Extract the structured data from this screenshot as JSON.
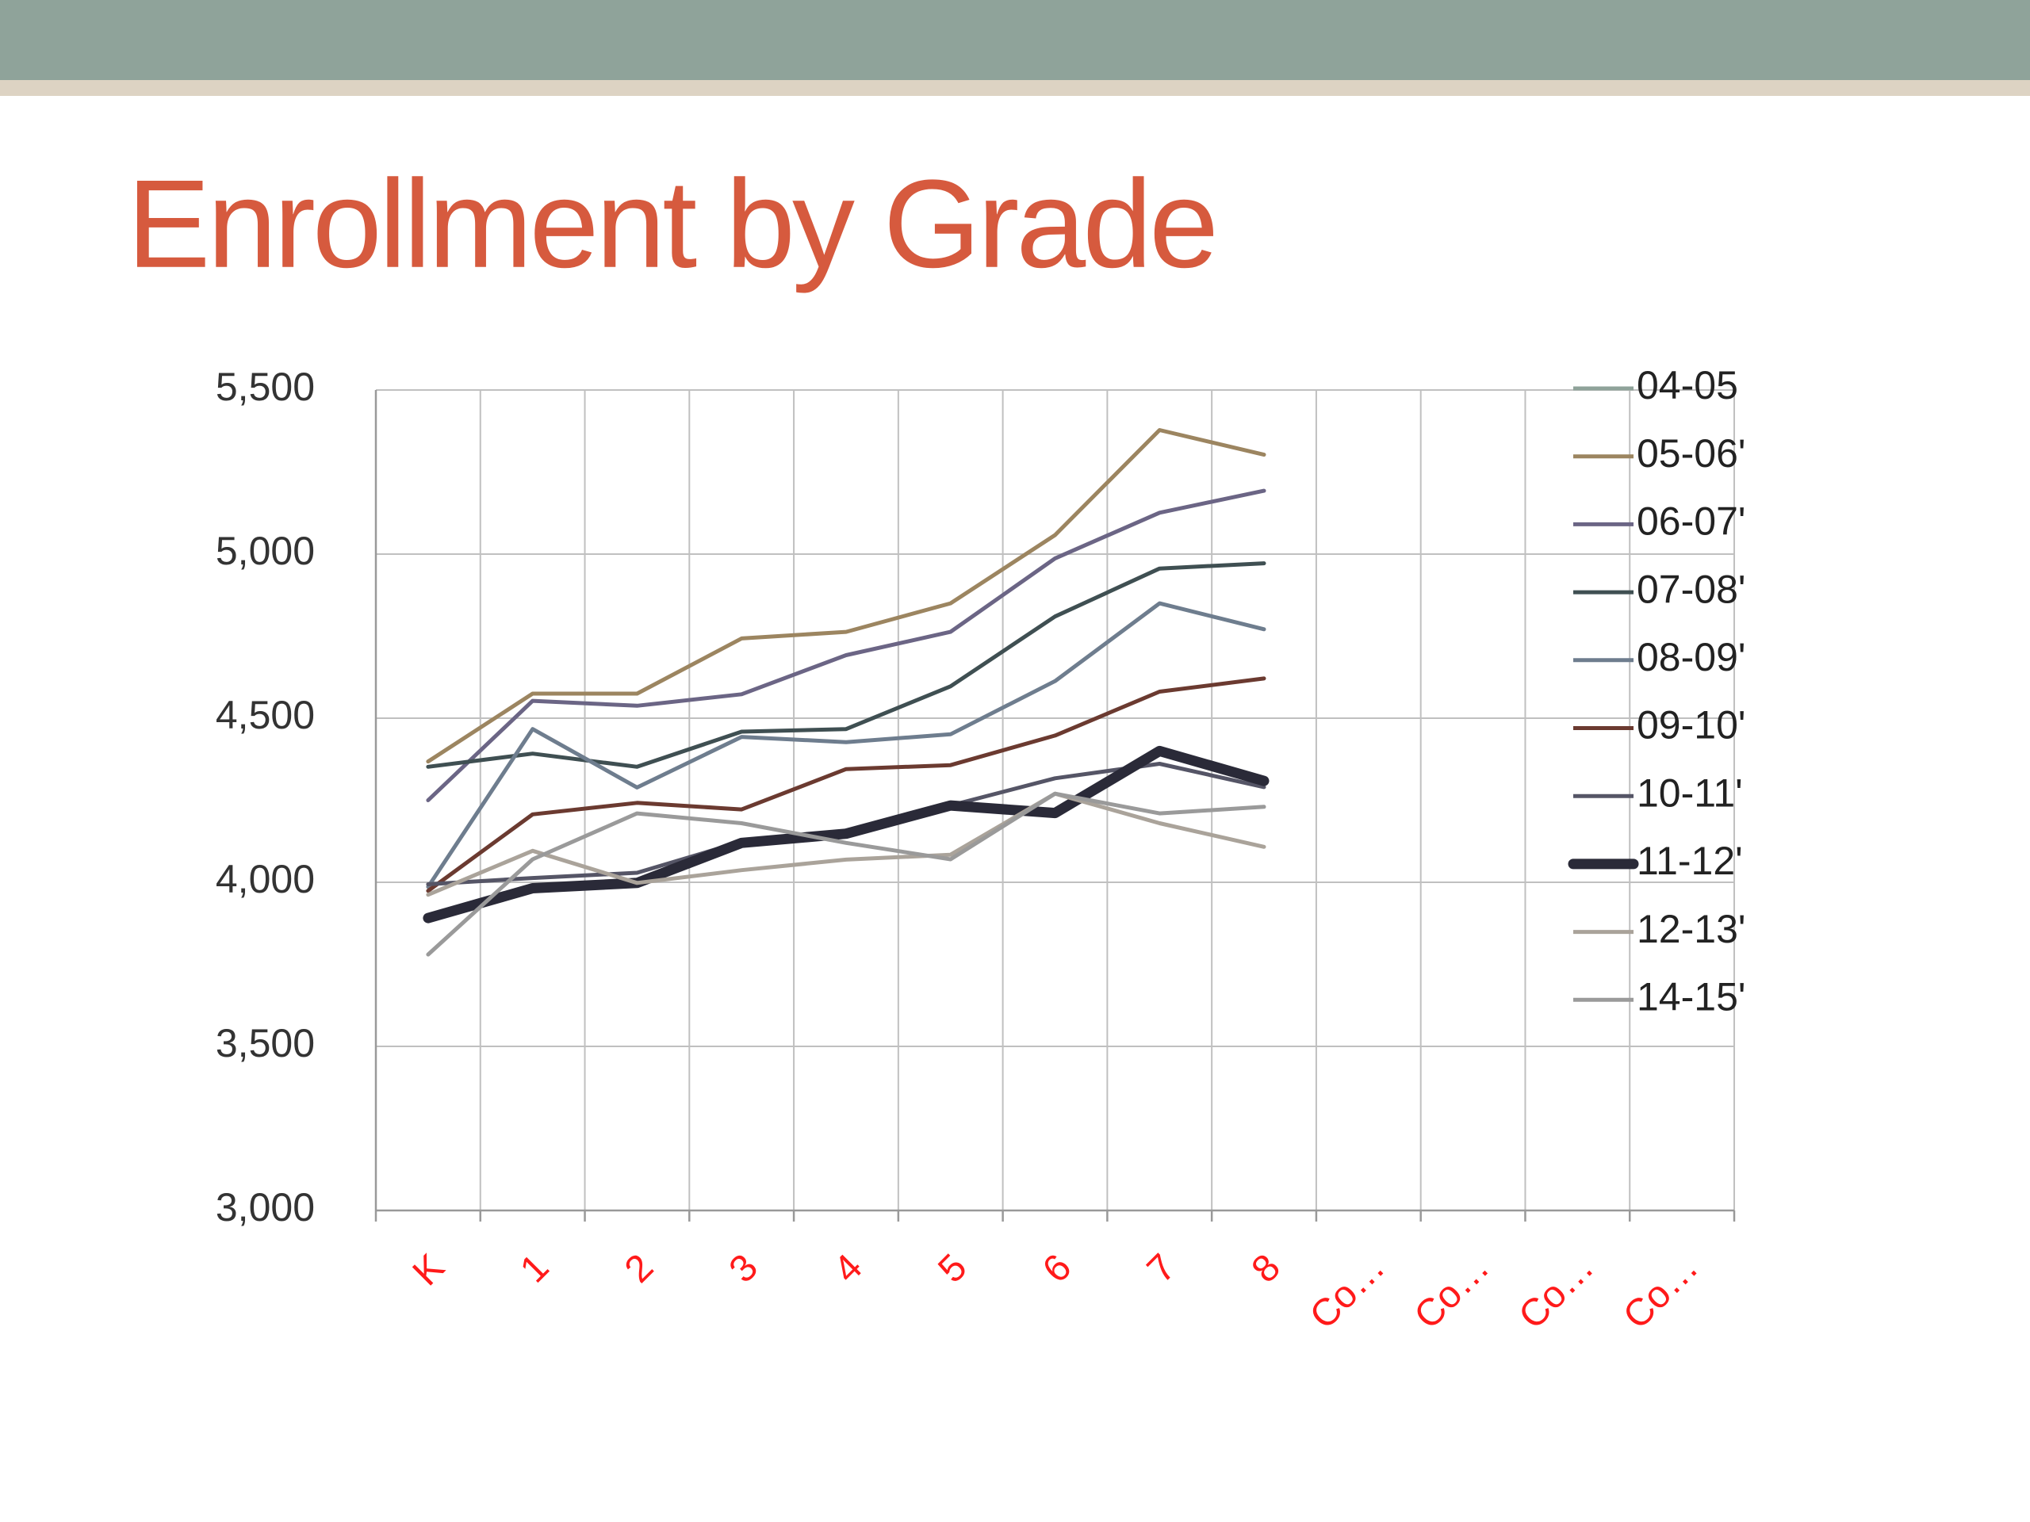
{
  "chart_data": {
    "type": "line",
    "title": "Enrollment by Grade",
    "categories": [
      "K",
      "1",
      "2",
      "3",
      "4",
      "5",
      "6",
      "7",
      "8",
      "Co…",
      "Co…",
      "Co…",
      "Co…"
    ],
    "ylim": [
      3000,
      5500
    ],
    "yticks": [
      {
        "value": 3000,
        "label": "3,000"
      },
      {
        "value": 3500,
        "label": "3,500"
      },
      {
        "value": 4000,
        "label": "4,000"
      },
      {
        "value": 4500,
        "label": "4,500"
      },
      {
        "value": 5000,
        "label": "5,000"
      },
      {
        "value": 5500,
        "label": "5,500"
      }
    ],
    "grid": true,
    "legend": "right",
    "series": [
      {
        "name": "04-05",
        "color": "#8fa39a",
        "values": [
          null,
          null,
          null,
          null,
          null,
          null,
          null,
          null,
          null,
          null,
          null,
          null,
          null
        ]
      },
      {
        "name": "05-06'",
        "color": "#9c8560",
        "values": [
          4368,
          4575,
          4575,
          4743,
          4763,
          4850,
          5058,
          5378,
          5303,
          null,
          null,
          null,
          null
        ]
      },
      {
        "name": "06-07'",
        "color": "#6b6585",
        "values": [
          4250,
          4553,
          4538,
          4573,
          4692,
          4763,
          4987,
          5126,
          5193,
          null,
          null,
          null,
          null
        ]
      },
      {
        "name": "07-08'",
        "color": "#3f4f52",
        "values": [
          4352,
          4392,
          4352,
          4459,
          4467,
          4597,
          4810,
          4956,
          4972,
          null,
          null,
          null,
          null
        ]
      },
      {
        "name": "08-09'",
        "color": "#6e7d8e",
        "values": [
          3986,
          4467,
          4289,
          4443,
          4427,
          4451,
          4613,
          4850,
          4771,
          null,
          null,
          null,
          null
        ]
      },
      {
        "name": "09-10'",
        "color": "#6b3a30",
        "values": [
          3974,
          4207,
          4242,
          4222,
          4345,
          4357,
          4447,
          4581,
          4621,
          null,
          null,
          null,
          null
        ]
      },
      {
        "name": "10-11'",
        "color": "#555566",
        "values": [
          3994,
          4013,
          4029,
          4124,
          4144,
          4234,
          4317,
          4361,
          4290,
          null,
          null,
          null,
          null
        ]
      },
      {
        "name": "11-12'",
        "color": "#2a2a38",
        "values": [
          3891,
          3982,
          3998,
          4120,
          4148,
          4234,
          4211,
          4400,
          4309,
          null,
          null,
          null,
          null
        ]
      },
      {
        "name": "12-13'",
        "color": "#aaa39a",
        "values": [
          3962,
          4096,
          3998,
          4037,
          4069,
          4084,
          4270,
          4180,
          4108,
          null,
          null,
          null,
          null
        ]
      },
      {
        "name": "14-15'",
        "color": "#9a9a9a",
        "values": [
          3780,
          4070,
          4210,
          4180,
          4120,
          4070,
          4270,
          4210,
          4230,
          null,
          null,
          null,
          null
        ]
      }
    ]
  }
}
